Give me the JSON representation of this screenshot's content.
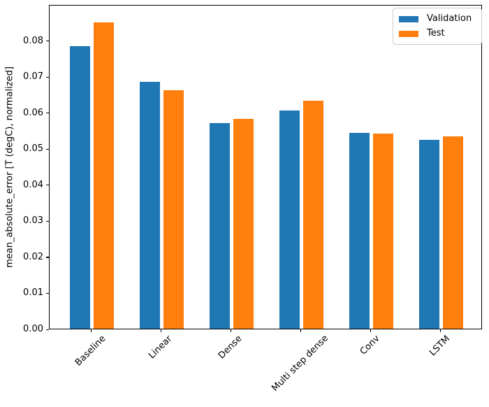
{
  "figure": {
    "background": "#ffffff"
  },
  "chart_data": {
    "type": "bar",
    "title": "",
    "xlabel": "",
    "ylabel": "mean_absolute_error [T (degC), normalized]",
    "categories": [
      "Baseline",
      "Linear",
      "Dense",
      "Multi step dense",
      "Conv",
      "LSTM"
    ],
    "series": [
      {
        "name": "Validation",
        "color": "#1f77b4",
        "offset": -0.17,
        "values": [
          0.0785,
          0.0686,
          0.0571,
          0.0606,
          0.0545,
          0.0524
        ]
      },
      {
        "name": "Test",
        "color": "#ff7f0e",
        "offset": 0.17,
        "values": [
          0.0852,
          0.0663,
          0.0583,
          0.0634,
          0.0543,
          0.0534
        ]
      }
    ],
    "bar_width": 0.29,
    "xlim": [
      -0.6,
      5.6
    ],
    "ylim": [
      0,
      0.09
    ],
    "yticks": [
      0.0,
      0.01,
      0.02,
      0.03,
      0.04,
      0.05,
      0.06,
      0.07,
      0.08
    ],
    "ytick_labels": [
      "0.00",
      "0.01",
      "0.02",
      "0.03",
      "0.04",
      "0.05",
      "0.06",
      "0.07",
      "0.08"
    ],
    "xtick_rotation_deg": 45,
    "grid": false,
    "legend": {
      "position": "upper right",
      "entries": [
        "Validation",
        "Test"
      ]
    }
  }
}
